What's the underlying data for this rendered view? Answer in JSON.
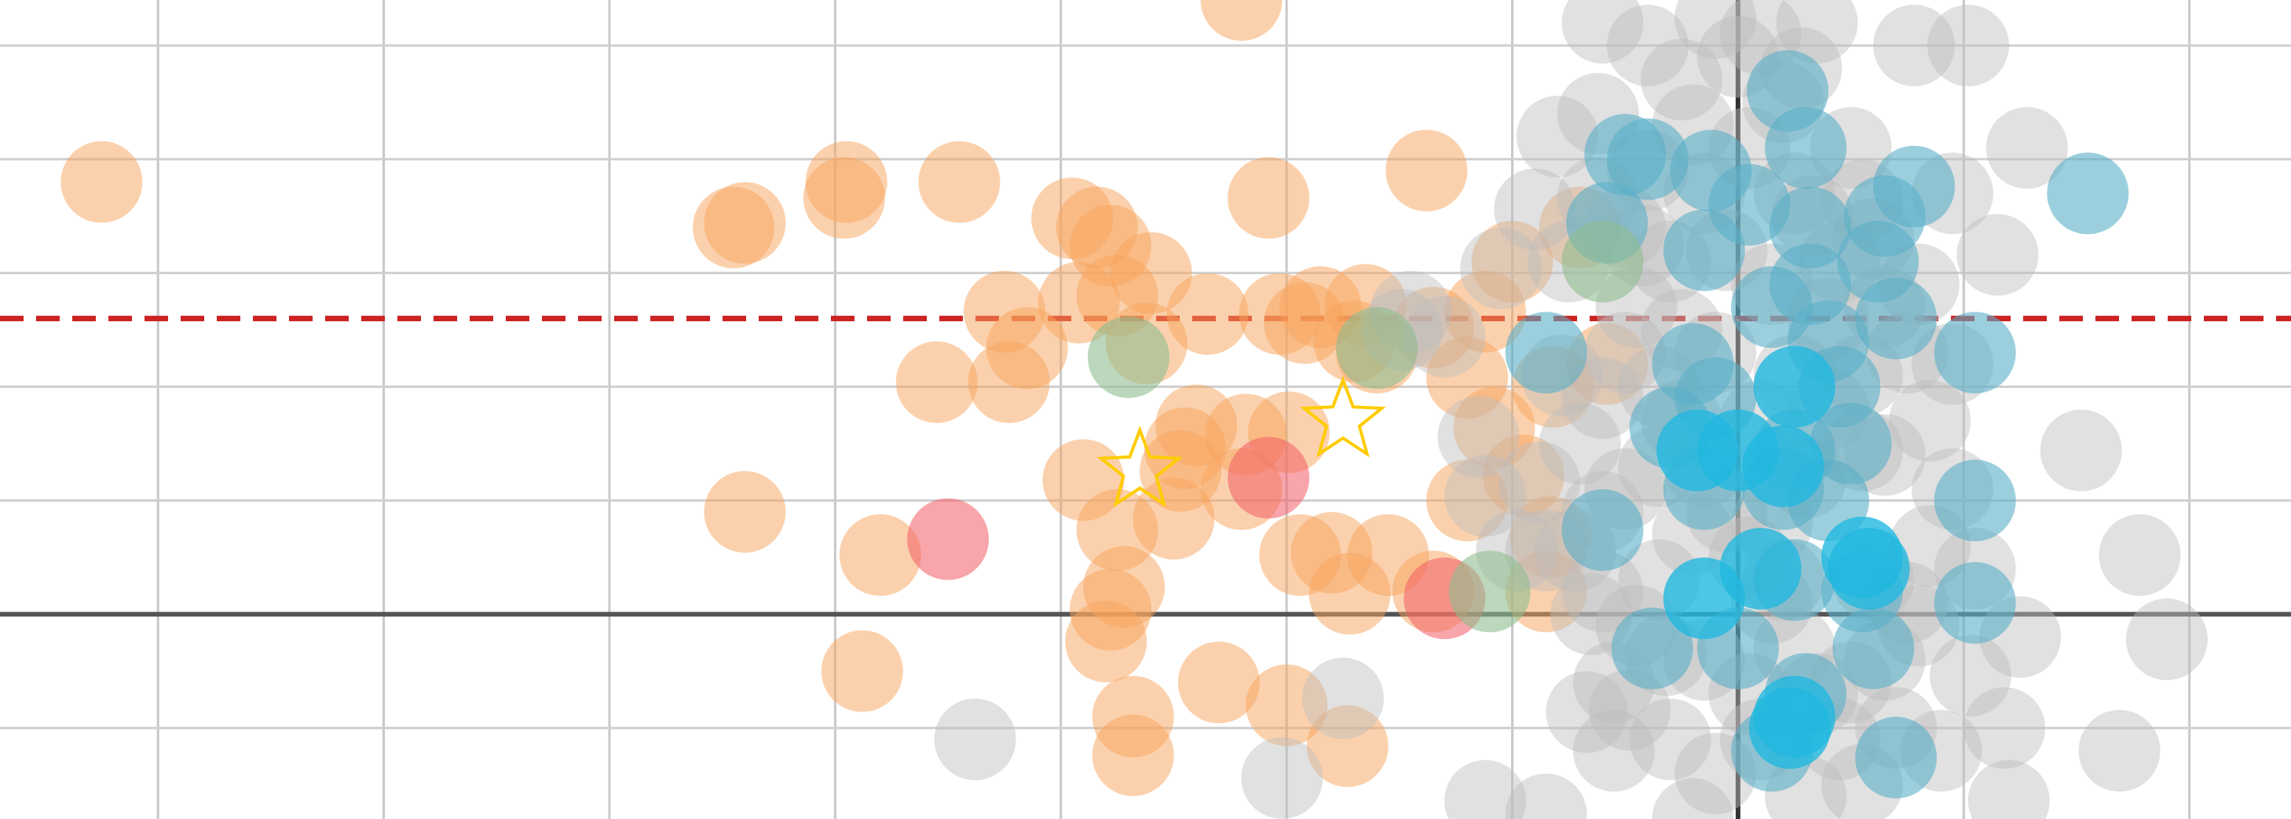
{
  "chart_data": {
    "type": "scatter",
    "title": "",
    "xlabel": "",
    "ylabel": "",
    "xlim": [
      -7.7,
      2.45
    ],
    "ylim": [
      -0.9,
      2.7
    ],
    "grid": true,
    "x_ticks": [
      -7,
      -6,
      -5,
      -4,
      -3,
      -2,
      -1,
      0,
      1,
      2
    ],
    "y_ticks": [
      -0.5,
      0,
      0.5,
      1,
      1.5,
      2,
      2.5
    ],
    "legend": "none",
    "reference_lines": [
      {
        "name": "axis-zero-horizontal",
        "orientation": "horizontal",
        "value": 0,
        "color": "#555555",
        "style": "solid"
      },
      {
        "name": "axis-zero-vertical",
        "orientation": "vertical",
        "value": 0,
        "color": "#333333",
        "style": "solid"
      },
      {
        "name": "threshold-line",
        "orientation": "horizontal",
        "value": 1.3,
        "color": "#cc2222",
        "style": "dashed"
      }
    ],
    "series": [
      {
        "color": "#f7a35c",
        "opacity": 0.5,
        "points": [
          [
            -7.25,
            1.9
          ],
          [
            -4.4,
            0.45
          ],
          [
            -4.45,
            1.7
          ],
          [
            -4.4,
            1.72
          ],
          [
            -3.96,
            1.83
          ],
          [
            -3.95,
            1.9
          ],
          [
            -3.45,
            1.9
          ],
          [
            -3.15,
            1.17
          ],
          [
            -3.55,
            1.02
          ],
          [
            -3.23,
            1.02
          ],
          [
            -3.8,
            0.26
          ],
          [
            -3.88,
            -0.25
          ],
          [
            -3.25,
            1.33
          ],
          [
            -2.9,
            0.59
          ],
          [
            -2.92,
            1.37
          ],
          [
            -2.95,
            1.74
          ],
          [
            -2.84,
            1.7
          ],
          [
            -2.78,
            1.62
          ],
          [
            -2.75,
            1.4
          ],
          [
            -2.6,
            1.5
          ],
          [
            -2.62,
            1.19
          ],
          [
            -2.35,
            1.32
          ],
          [
            -2.03,
            1.32
          ],
          [
            -1.85,
            1.35
          ],
          [
            -1.7,
            1.2
          ],
          [
            -2.45,
            0.73
          ],
          [
            -2.4,
            0.83
          ],
          [
            -2.47,
            0.63
          ],
          [
            -2.5,
            0.42
          ],
          [
            -2.75,
            0.37
          ],
          [
            -2.72,
            0.12
          ],
          [
            -2.78,
            0.02
          ],
          [
            -2.8,
            -0.12
          ],
          [
            -2.3,
            -0.3
          ],
          [
            -2.0,
            -0.4
          ],
          [
            -2.68,
            -0.62
          ],
          [
            -1.94,
            0.26
          ],
          [
            -1.99,
            0.8
          ],
          [
            -1.2,
            0.5
          ],
          [
            -1.8,
            0.27
          ],
          [
            -1.72,
            0.09
          ],
          [
            -1.55,
            0.26
          ],
          [
            -1.35,
            0.1
          ],
          [
            -1.38,
            1.95
          ],
          [
            -1.65,
            1.36
          ],
          [
            -1.35,
            1.26
          ],
          [
            -1.0,
            1.55
          ],
          [
            -1.2,
            1.04
          ],
          [
            -1.12,
            1.33
          ],
          [
            -1.08,
            0.82
          ],
          [
            -0.95,
            0.61
          ],
          [
            -0.83,
            0.34
          ],
          [
            -0.7,
            1.7
          ],
          [
            -0.58,
            1.1
          ],
          [
            -0.85,
            0.1
          ],
          [
            -2.08,
            1.83
          ],
          [
            -2.18,
            0.79
          ],
          [
            -0.82,
            1.0
          ],
          [
            -2.2,
            2.7
          ],
          [
            -1.73,
            -0.58
          ],
          [
            -2.68,
            -0.45
          ],
          [
            -1.92,
            1.28
          ],
          [
            -1.6,
            1.15
          ],
          [
            -2.2,
            0.55
          ]
        ]
      },
      {
        "color": "#f25c66",
        "opacity": 0.55,
        "points": [
          [
            -3.5,
            0.33
          ],
          [
            -2.08,
            0.6
          ],
          [
            -1.3,
            0.07
          ]
        ]
      },
      {
        "color": "#bdbdbd",
        "opacity": 0.45,
        "points": [
          [
            -3.38,
            -0.55
          ],
          [
            -2.02,
            -0.72
          ],
          [
            -1.75,
            -0.37
          ],
          [
            -1.49,
            1.25
          ],
          [
            -1.3,
            1.22
          ],
          [
            -1.15,
            0.78
          ],
          [
            -1.12,
            0.52
          ],
          [
            -1.45,
            1.33
          ],
          [
            -0.98,
            0.28
          ],
          [
            -0.88,
            0.58
          ],
          [
            -0.85,
            0.28
          ],
          [
            -1.12,
            -0.82
          ],
          [
            -0.85,
            -0.88
          ],
          [
            -0.67,
            -0.43
          ],
          [
            -0.1,
            2.62
          ],
          [
            -0.6,
            2.6
          ],
          [
            -0.62,
            2.2
          ],
          [
            -0.9,
            1.78
          ],
          [
            -0.75,
            1.55
          ],
          [
            -1.05,
            1.52
          ],
          [
            -0.62,
            1.83
          ],
          [
            -0.42,
            1.62
          ],
          [
            -0.2,
            2.15
          ],
          [
            0.1,
            2.55
          ],
          [
            0.28,
            2.4
          ],
          [
            0.33,
            1.75
          ],
          [
            0.55,
            1.82
          ],
          [
            0.78,
            2.5
          ],
          [
            1.02,
            2.5
          ],
          [
            1.28,
            2.05
          ],
          [
            1.15,
            1.58
          ],
          [
            0.8,
            1.45
          ],
          [
            0.95,
            1.1
          ],
          [
            0.55,
            0.72
          ],
          [
            1.52,
            0.72
          ],
          [
            1.78,
            0.26
          ],
          [
            1.9,
            -0.11
          ],
          [
            1.69,
            -0.6
          ],
          [
            1.2,
            -0.82
          ],
          [
            1.18,
            -0.5
          ],
          [
            1.03,
            -0.27
          ],
          [
            1.25,
            -0.1
          ],
          [
            -0.48,
            -0.42
          ],
          [
            -0.2,
            -0.9
          ],
          [
            -0.55,
            -0.6
          ],
          [
            -0.32,
            -0.18
          ],
          [
            -0.65,
            0.0
          ],
          [
            -0.72,
            0.28
          ],
          [
            -0.5,
            0.55
          ],
          [
            -0.6,
            0.95
          ],
          [
            -0.78,
            1.05
          ],
          [
            -0.5,
            1.15
          ],
          [
            -0.35,
            1.0
          ],
          [
            -0.25,
            0.85
          ],
          [
            -0.15,
            0.65
          ],
          [
            -0.05,
            0.45
          ],
          [
            0.05,
            0.25
          ],
          [
            0.15,
            0.05
          ],
          [
            0.25,
            -0.15
          ],
          [
            0.35,
            -0.35
          ],
          [
            0.45,
            -0.55
          ],
          [
            0.55,
            -0.75
          ],
          [
            0.65,
            -0.2
          ],
          [
            0.75,
            0.05
          ],
          [
            0.85,
            0.3
          ],
          [
            0.95,
            0.55
          ],
          [
            0.85,
            0.85
          ],
          [
            0.75,
            1.15
          ],
          [
            0.65,
            1.35
          ],
          [
            0.45,
            1.55
          ],
          [
            0.25,
            1.85
          ],
          [
            0.05,
            2.05
          ],
          [
            -0.15,
            1.85
          ],
          [
            -0.3,
            1.55
          ],
          [
            -0.45,
            1.35
          ],
          [
            -0.4,
            1.95
          ],
          [
            -0.25,
            2.35
          ],
          [
            0.2,
            2.25
          ],
          [
            0.5,
            2.05
          ],
          [
            0.6,
            1.65
          ],
          [
            0.4,
            1.3
          ],
          [
            0.25,
            1.05
          ],
          [
            0.1,
            0.85
          ],
          [
            -0.1,
            1.15
          ],
          [
            -0.2,
            0.35
          ],
          [
            -0.35,
            0.15
          ],
          [
            -0.45,
            -0.05
          ],
          [
            -0.3,
            -0.55
          ],
          [
            -0.1,
            -0.7
          ],
          [
            0.1,
            -0.55
          ],
          [
            0.3,
            -0.8
          ],
          [
            0.5,
            -0.3
          ],
          [
            0.7,
            -0.5
          ],
          [
            0.8,
            -0.05
          ],
          [
            0.65,
            0.7
          ],
          [
            0.4,
            0.9
          ],
          [
            0.3,
            0.6
          ],
          [
            0.15,
            0.4
          ],
          [
            -0.6,
            0.45
          ],
          [
            -0.7,
            0.75
          ],
          [
            -0.55,
            -0.3
          ],
          [
            -0.4,
            2.5
          ],
          [
            0.0,
            2.45
          ],
          [
            0.35,
            2.6
          ],
          [
            -0.8,
            2.1
          ],
          [
            0.95,
            1.85
          ],
          [
            1.05,
            0.2
          ],
          [
            0.9,
            -0.6
          ],
          [
            -0.05,
            1.6
          ],
          [
            0.15,
            1.45
          ],
          [
            -0.25,
            1.25
          ],
          [
            0.55,
            1.05
          ],
          [
            -0.6,
            0.1
          ],
          [
            -0.15,
            -0.2
          ],
          [
            0.05,
            -0.35
          ],
          [
            0.6,
            0.15
          ],
          [
            0.2,
            0.15
          ],
          [
            -0.35,
            0.65
          ],
          [
            -0.5,
            1.7
          ]
        ]
      },
      {
        "color": "#5aafc8",
        "opacity": 0.6,
        "points": [
          [
            -0.5,
            2.02
          ],
          [
            -0.58,
            1.72
          ],
          [
            -0.85,
            1.15
          ],
          [
            0.22,
            2.3
          ],
          [
            0.3,
            2.05
          ],
          [
            0.32,
            1.7
          ],
          [
            -0.12,
            1.95
          ],
          [
            0.05,
            1.8
          ],
          [
            0.32,
            1.45
          ],
          [
            0.15,
            1.35
          ],
          [
            0.4,
            1.2
          ],
          [
            -0.2,
            1.1
          ],
          [
            0.45,
            1.0
          ],
          [
            0.65,
            1.75
          ],
          [
            0.62,
            1.55
          ],
          [
            0.78,
            1.88
          ],
          [
            1.55,
            1.85
          ],
          [
            1.05,
            1.15
          ],
          [
            1.05,
            0.5
          ],
          [
            1.05,
            0.05
          ],
          [
            0.6,
            -0.15
          ],
          [
            0.7,
            -0.63
          ],
          [
            0.3,
            -0.35
          ],
          [
            0.55,
            0.1
          ],
          [
            0.25,
            0.15
          ],
          [
            -0.6,
            0.37
          ],
          [
            -0.38,
            -0.15
          ],
          [
            0.0,
            -0.15
          ],
          [
            -0.3,
            0.82
          ],
          [
            0.25,
            0.72
          ],
          [
            0.2,
            0.55
          ],
          [
            -0.15,
            0.55
          ],
          [
            0.15,
            -0.6
          ],
          [
            -0.4,
            2.0
          ],
          [
            -0.15,
            1.6
          ],
          [
            0.7,
            1.3
          ],
          [
            0.5,
            0.75
          ],
          [
            0.4,
            0.5
          ],
          [
            -0.1,
            0.95
          ]
        ]
      },
      {
        "color": "#22b8e0",
        "opacity": 0.8,
        "points": [
          [
            0.25,
            1.0
          ],
          [
            0.2,
            0.65
          ],
          [
            0.0,
            0.72
          ],
          [
            -0.18,
            0.72
          ],
          [
            -0.15,
            0.07
          ],
          [
            0.1,
            0.2
          ],
          [
            0.55,
            0.25
          ],
          [
            0.58,
            0.2
          ],
          [
            0.25,
            -0.45
          ],
          [
            0.23,
            -0.5
          ]
        ]
      },
      {
        "color": "#8fbc8f",
        "opacity": 0.6,
        "points": [
          [
            -2.7,
            1.13
          ],
          [
            -1.6,
            1.17
          ],
          [
            -0.6,
            1.55
          ],
          [
            -1.1,
            0.1
          ]
        ]
      }
    ],
    "highlighted": [
      {
        "marker": "star",
        "color": "#ffcc00",
        "points": [
          [
            -2.65,
            0.63
          ],
          [
            -1.75,
            0.85
          ]
        ]
      }
    ]
  }
}
